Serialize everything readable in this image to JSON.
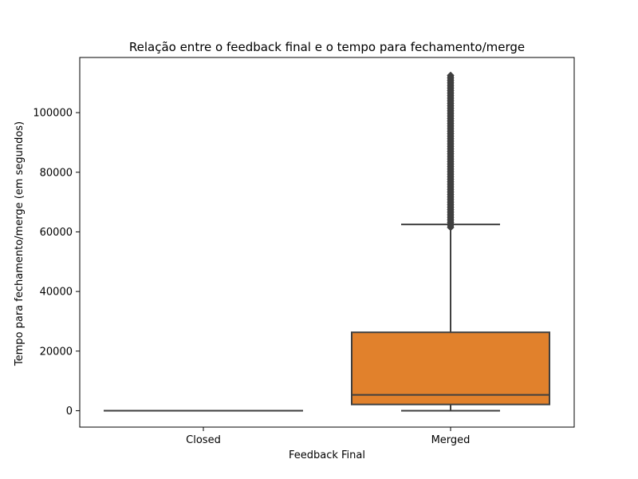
{
  "chart_data": {
    "type": "box",
    "title": "Relação entre o feedback final e o tempo para fechamento/merge",
    "xlabel": "Feedback Final",
    "ylabel": "Tempo para fechamento/merge (em segundos)",
    "categories": [
      "Closed",
      "Merged"
    ],
    "ylim": [
      -5500,
      118500
    ],
    "yticks": [
      0,
      20000,
      40000,
      60000,
      80000,
      100000
    ],
    "ytick_labels": [
      "0",
      "20000",
      "40000",
      "60000",
      "80000",
      "100000"
    ],
    "grid": false,
    "legend": "none",
    "boxes": [
      {
        "category": "Closed",
        "whisker_low": 0,
        "q1": 0,
        "median": 0,
        "q3": 0,
        "whisker_high": 0,
        "color": "#3a75af",
        "outliers_range": null
      },
      {
        "category": "Merged",
        "whisker_low": 0,
        "q1": 2100,
        "median": 5300,
        "q3": 26300,
        "whisker_high": 62500,
        "color": "#e1812c",
        "outliers_range": [
          61500,
          112500
        ]
      }
    ],
    "line_color": "#3f3f3f"
  }
}
